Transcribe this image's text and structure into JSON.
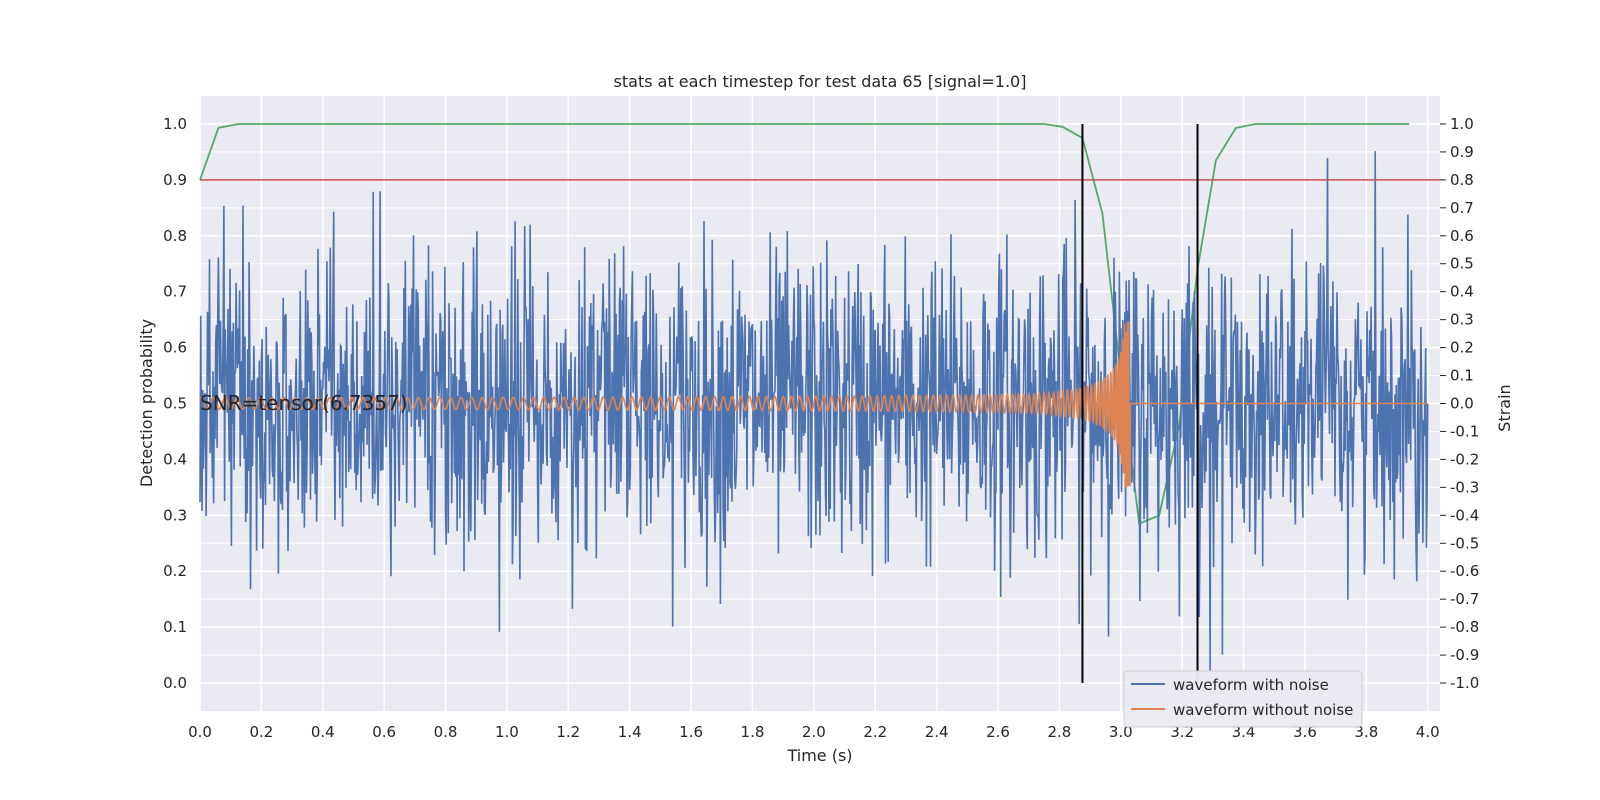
{
  "chart_data": {
    "type": "line",
    "title": "stats at each timestep for test data 65 [signal=1.0]",
    "xlabel": "Time (s)",
    "ylabel": "Detection probability",
    "y2label": "Strain",
    "xlim": [
      0.0,
      4.04
    ],
    "ylim": [
      -0.05,
      1.05
    ],
    "y2lim": [
      -1.1,
      1.1
    ],
    "xticks": [
      "0.0",
      "0.2",
      "0.4",
      "0.6",
      "0.8",
      "1.0",
      "1.2",
      "1.4",
      "1.6",
      "1.8",
      "2.0",
      "2.2",
      "2.4",
      "2.6",
      "2.8",
      "3.0",
      "3.2",
      "3.4",
      "3.6",
      "3.8",
      "4.0"
    ],
    "yticks": [
      "0.0",
      "0.1",
      "0.2",
      "0.3",
      "0.4",
      "0.5",
      "0.6",
      "0.7",
      "0.8",
      "0.9",
      "1.0"
    ],
    "y2ticks": [
      "-1.0",
      "-0.9",
      "-0.8",
      "-0.7",
      "-0.6",
      "-0.5",
      "-0.4",
      "-0.3",
      "-0.2",
      "-0.1",
      "0.0",
      "0.1",
      "0.2",
      "0.3",
      "0.4",
      "0.5",
      "0.6",
      "0.7",
      "0.8",
      "0.9",
      "1.0"
    ],
    "grid": true,
    "annotation": "SNR=tensor(6.7357)",
    "threshold": {
      "value": 0.9,
      "color": "#c44e52"
    },
    "vlines": [
      2.875,
      3.25
    ],
    "detection_probability": {
      "color": "#55a868",
      "x": [
        0.0,
        0.06,
        0.125,
        0.25,
        0.5,
        1.0,
        1.5,
        2.0,
        2.5,
        2.75,
        2.81,
        2.875,
        2.94,
        3.0,
        3.06,
        3.125,
        3.19,
        3.25,
        3.31,
        3.375,
        3.44,
        3.5,
        3.75,
        3.94
      ],
      "y": [
        0.9,
        0.993,
        1.0,
        1.0,
        1.0,
        1.0,
        1.0,
        1.0,
        1.0,
        1.0,
        0.995,
        0.975,
        0.84,
        0.55,
        0.285,
        0.3,
        0.46,
        0.74,
        0.935,
        0.993,
        1.0,
        1.0,
        1.0,
        1.0
      ]
    },
    "series": [
      {
        "name": "waveform with noise",
        "color": "#4c72b0",
        "x_range": [
          0.0,
          4.0
        ],
        "strain_range": [
          -1.0,
          0.96
        ]
      },
      {
        "name": "waveform without noise",
        "color": "#dd8452",
        "merger_time": 3.03,
        "start_amplitude": 0.02,
        "peak_amplitude": 0.3
      }
    ],
    "legend": "lower-right"
  }
}
